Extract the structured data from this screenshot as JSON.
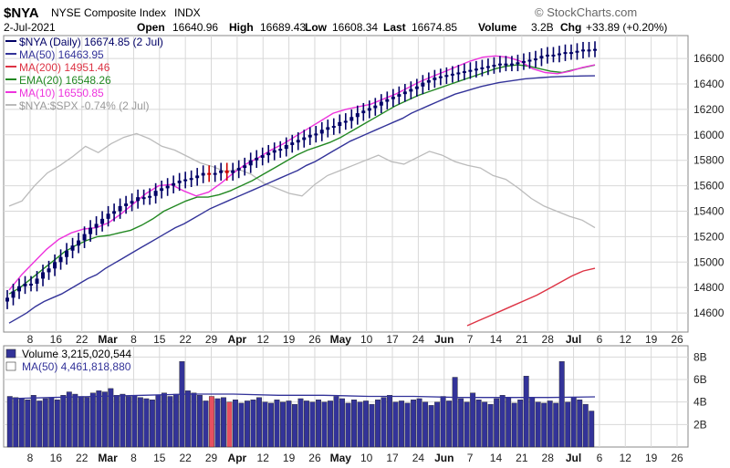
{
  "header": {
    "symbol": "$NYA",
    "name": "NYSE Composite Index",
    "exchange": "INDX",
    "date": "2-Jul-2021",
    "open_label": "Open",
    "open": "16640.96",
    "high_label": "High",
    "high": "16689.43",
    "low_label": "Low",
    "low": "16608.34",
    "last_label": "Last",
    "last": "16674.85",
    "volume_label": "Volume",
    "volume": "3.2B",
    "chg_label": "Chg",
    "chg": "+33.89 (+0.20%)",
    "watermark": "© StockCharts.com"
  },
  "colors": {
    "up": "#000066",
    "down": "#cc0000",
    "ma50": "#333399",
    "ma200": "#dd3344",
    "ema20": "#228822",
    "ma10": "#ee33dd",
    "relative": "#bbbbbb",
    "vol_up": "#333399",
    "vol_down": "#e65060"
  },
  "chart_data": [
    {
      "type": "candlestick",
      "title": "$NYA (Daily) 16674.85 (2 Jul)",
      "ylim": [
        14450,
        16780
      ],
      "y_ticks": [
        "16600",
        "16400",
        "16200",
        "16000",
        "15800",
        "15600",
        "15400",
        "15200",
        "15000",
        "14800",
        "14600"
      ],
      "y_tick_values": [
        16600,
        16400,
        16200,
        16000,
        15800,
        15600,
        15400,
        15200,
        15000,
        14800,
        14600
      ],
      "x_ticks": [
        "8",
        "16",
        "22",
        "Mar",
        "8",
        "15",
        "22",
        "29",
        "Apr",
        "12",
        "19",
        "26",
        "May",
        "10",
        "17",
        "24",
        "Jun",
        "7",
        "14",
        "21",
        "28",
        "Jul",
        "6",
        "12",
        "19",
        "26"
      ],
      "month_ticks": [
        "Mar",
        "Apr",
        "May",
        "Jun",
        "Jul"
      ],
      "legend": [
        {
          "key": "price",
          "label": "$NYA (Daily) 16674.85 (2 Jul)"
        },
        {
          "key": "ma50",
          "label": "MA(50) 16463.95"
        },
        {
          "key": "ma200",
          "label": "MA(200) 14951.46"
        },
        {
          "key": "ema20",
          "label": "EMA(20) 16548.26"
        },
        {
          "key": "ma10",
          "label": "MA(10) 16550.85"
        },
        {
          "key": "relative",
          "label": "$NYA:$SPX -0.74% (2 Jul)"
        }
      ],
      "series": [
        {
          "name": "$NYA",
          "values": [
            14720,
            14770,
            14810,
            14830,
            14830,
            14870,
            14920,
            14950,
            15000,
            15040,
            15090,
            15130,
            15170,
            15220,
            15270,
            15300,
            15340,
            15380,
            15400,
            15440,
            15460,
            15480,
            15510,
            15510,
            15520,
            15560,
            15580,
            15600,
            15620,
            15640,
            15650,
            15660,
            15680,
            15700,
            15690,
            15700,
            15720,
            15700,
            15720,
            15740,
            15760,
            15800,
            15820,
            15840,
            15860,
            15880,
            15890,
            15920,
            15940,
            15960,
            15980,
            16000,
            16010,
            16040,
            16060,
            16070,
            16100,
            16110,
            16140,
            16170,
            16190,
            16210,
            16230,
            16260,
            16280,
            16300,
            16320,
            16340,
            16360,
            16380,
            16410,
            16430,
            16450,
            16460,
            16470,
            16480,
            16490,
            16500,
            16510,
            16520,
            16530,
            16540,
            16550,
            16560,
            16560,
            16560,
            16570,
            16580,
            16590,
            16600,
            16620,
            16630,
            16630,
            16640,
            16650,
            16650,
            16660,
            16670,
            16670,
            16675
          ]
        },
        {
          "name": "MA(50)",
          "values": [
            14520,
            14560,
            14600,
            14650,
            14690,
            14720,
            14750,
            14790,
            14830,
            14870,
            14900,
            14950,
            14990,
            15030,
            15070,
            15110,
            15150,
            15190,
            15230,
            15270,
            15300,
            15340,
            15380,
            15420,
            15450,
            15480,
            15510,
            15540,
            15570,
            15600,
            15630,
            15660,
            15690,
            15720,
            15760,
            15790,
            15830,
            15870,
            15910,
            15950,
            15980,
            16010,
            16040,
            16070,
            16100,
            16130,
            16170,
            16200,
            16230,
            16260,
            16290,
            16320,
            16340,
            16360,
            16380,
            16395,
            16410,
            16420,
            16430,
            16440,
            16445,
            16450,
            16455,
            16458,
            16460,
            16462,
            16463,
            16463.95
          ]
        },
        {
          "name": "MA(200)",
          "values": [
            14500,
            14540,
            14580,
            14620,
            14660,
            14700,
            14740,
            14790,
            14840,
            14890,
            14930,
            14951.46
          ]
        },
        {
          "name": "EMA(20)",
          "values": [
            14750,
            14800,
            14870,
            14940,
            15010,
            15080,
            15130,
            15170,
            15200,
            15210,
            15230,
            15250,
            15290,
            15340,
            15400,
            15440,
            15480,
            15510,
            15510,
            15530,
            15560,
            15600,
            15640,
            15690,
            15740,
            15790,
            15840,
            15880,
            15910,
            15940,
            15980,
            16030,
            16080,
            16130,
            16180,
            16230,
            16270,
            16310,
            16340,
            16370,
            16400,
            16430,
            16460,
            16490,
            16520,
            16540,
            16550,
            16540,
            16520,
            16500,
            16490,
            16510,
            16530,
            16548.26
          ]
        },
        {
          "name": "MA(10)",
          "values": [
            14780,
            14900,
            15000,
            15100,
            15180,
            15230,
            15260,
            15270,
            15310,
            15380,
            15460,
            15540,
            15600,
            15610,
            15560,
            15520,
            15550,
            15620,
            15700,
            15770,
            15820,
            15880,
            15930,
            15990,
            16050,
            16110,
            16170,
            16200,
            16220,
            16240,
            16280,
            16320,
            16370,
            16420,
            16460,
            16500,
            16540,
            16580,
            16610,
            16620,
            16610,
            16580,
            16520,
            16490,
            16480,
            16500,
            16530,
            16550.85
          ]
        },
        {
          "name": "$NYA:$SPX",
          "values": [
            15440,
            15480,
            15600,
            15700,
            15760,
            15830,
            15910,
            15860,
            15930,
            15980,
            16010,
            15970,
            15910,
            15880,
            15830,
            15780,
            15750,
            15710,
            15730,
            15690,
            15620,
            15580,
            15540,
            15520,
            15610,
            15680,
            15720,
            15760,
            15800,
            15840,
            15790,
            15770,
            15820,
            15870,
            15840,
            15790,
            15760,
            15740,
            15680,
            15650,
            15580,
            15500,
            15440,
            15400,
            15360,
            15330,
            15270
          ]
        }
      ]
    },
    {
      "type": "bar",
      "title": "Volume 3,215,020,544",
      "ylim": [
        0,
        9
      ],
      "y_ticks": [
        "8B",
        "6B",
        "4B",
        "2B"
      ],
      "y_tick_values": [
        8,
        6,
        4,
        2
      ],
      "legend": [
        {
          "key": "volume",
          "label": "Volume 3,215,020,544"
        },
        {
          "key": "ma50v",
          "label": "MA(50) 4,461,818,880"
        }
      ],
      "series": [
        {
          "name": "Volume (B)",
          "values": [
            4.5,
            4.4,
            4.3,
            4.2,
            4.6,
            4.1,
            4.3,
            4.4,
            4.2,
            4.6,
            4.9,
            4.7,
            4.5,
            4.4,
            4.8,
            5.0,
            4.9,
            5.2,
            4.6,
            4.7,
            4.5,
            4.6,
            4.4,
            4.3,
            4.2,
            4.6,
            4.8,
            4.5,
            4.7,
            7.6,
            5.0,
            4.8,
            4.6,
            4.1,
            4.5,
            4.3,
            4.4,
            4.0,
            4.2,
            3.9,
            4.1,
            4.2,
            4.4,
            4.0,
            3.9,
            4.2,
            4.0,
            4.1,
            3.8,
            4.3,
            4.1,
            4.0,
            4.2,
            4.0,
            4.1,
            4.5,
            4.3,
            3.9,
            4.2,
            4.0,
            4.1,
            3.8,
            4.2,
            4.4,
            4.6,
            4.0,
            4.1,
            3.9,
            4.2,
            4.3,
            4.0,
            3.7,
            4.0,
            4.5,
            4.1,
            6.2,
            4.3,
            4.0,
            4.8,
            4.2,
            4.0,
            3.8,
            4.3,
            4.6,
            4.4,
            3.9,
            4.2,
            6.3,
            4.4,
            4.0,
            3.9,
            4.1,
            3.9,
            7.6,
            4.0,
            4.4,
            4.2,
            3.8,
            3.2
          ]
        },
        {
          "name": "MA(50)",
          "values": [
            4.3,
            4.4,
            4.5,
            4.6,
            4.7,
            4.7,
            4.6,
            4.6,
            4.5,
            4.5,
            4.4,
            4.4,
            4.4,
            4.46
          ]
        }
      ]
    }
  ]
}
